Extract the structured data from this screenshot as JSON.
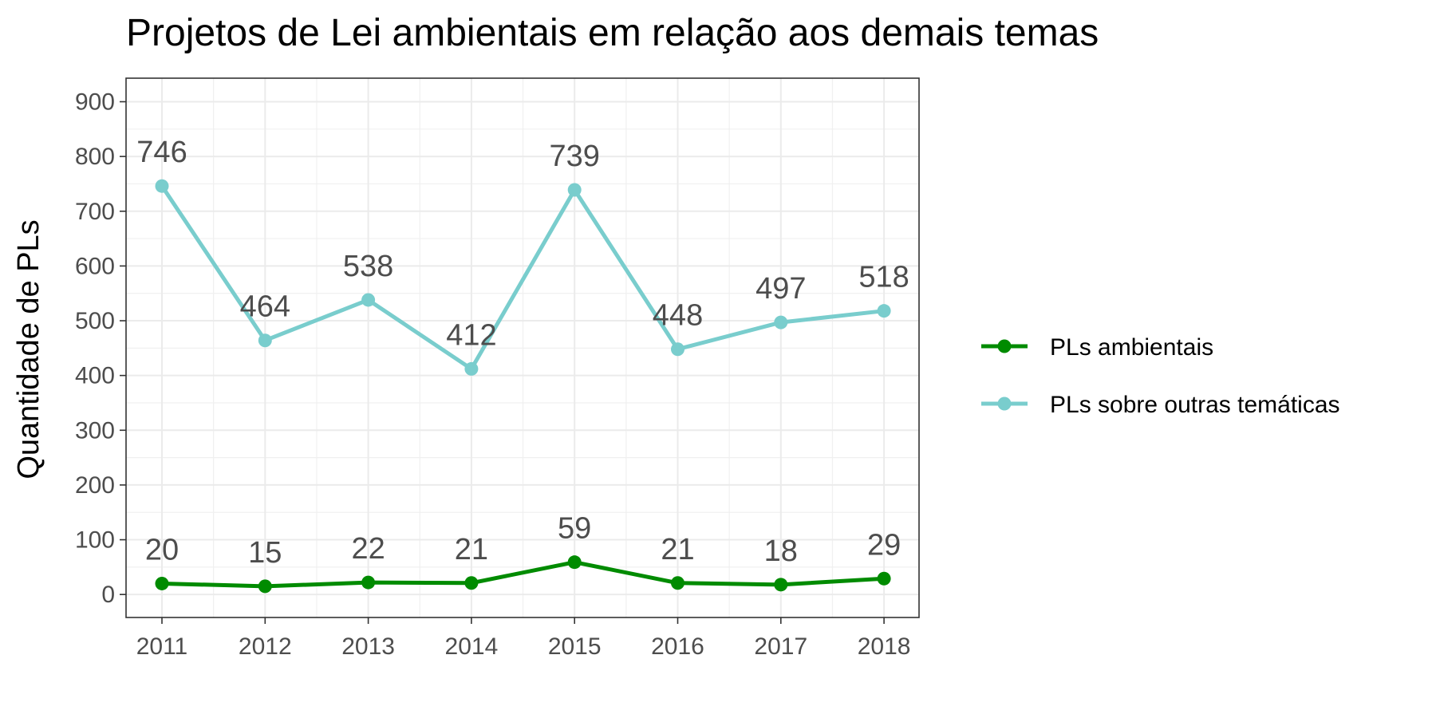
{
  "chart_data": {
    "type": "line",
    "title": "Projetos de Lei ambientais em relação aos demais temas",
    "xlabel": "",
    "ylabel": "Quantidade de PLs",
    "x": [
      "2011",
      "2012",
      "2013",
      "2014",
      "2015",
      "2016",
      "2017",
      "2018"
    ],
    "y_ticks": [
      0,
      100,
      200,
      300,
      400,
      500,
      600,
      700,
      800,
      900
    ],
    "ylim": [
      -42,
      943
    ],
    "grid": true,
    "legend_position": "right",
    "series": [
      {
        "name": "PLs ambientais",
        "color": "#008B00",
        "values": [
          20,
          15,
          22,
          21,
          59,
          21,
          18,
          29
        ]
      },
      {
        "name": "PLs sobre outras temáticas",
        "color": "#79CDCD",
        "values": [
          746,
          464,
          538,
          412,
          739,
          448,
          497,
          518
        ]
      }
    ]
  }
}
